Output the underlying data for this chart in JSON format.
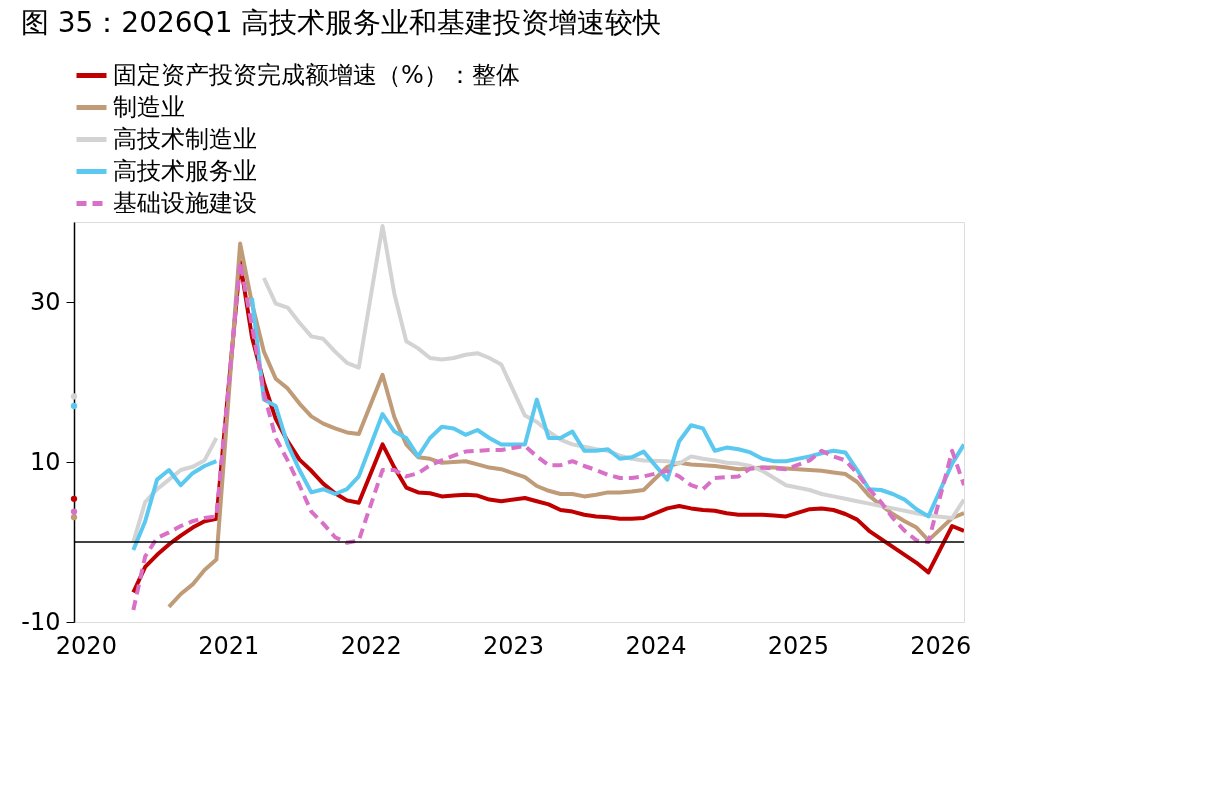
{
  "chart_data": {
    "type": "line",
    "title": "图 35：2026Q1 高技术服务业和基建投资增速较快",
    "x": [
      "2019-12",
      "2020-02",
      "2020-03",
      "2020-04",
      "2020-05",
      "2020-06",
      "2020-07",
      "2020-08",
      "2020-09",
      "2020-10",
      "2020-11",
      "2020-12",
      "2021-02",
      "2021-03",
      "2021-04",
      "2021-05",
      "2021-06",
      "2021-07",
      "2021-08",
      "2021-09",
      "2021-10",
      "2021-11",
      "2021-12",
      "2022-02",
      "2022-03",
      "2022-04",
      "2022-05",
      "2022-06",
      "2022-07",
      "2022-08",
      "2022-09",
      "2022-10",
      "2022-11",
      "2022-12",
      "2023-02",
      "2023-03",
      "2023-04",
      "2023-05",
      "2023-06",
      "2023-07",
      "2023-08",
      "2023-09",
      "2023-10",
      "2023-11",
      "2023-12",
      "2024-02",
      "2024-03",
      "2024-04",
      "2024-05",
      "2024-06",
      "2024-07",
      "2024-08",
      "2024-09",
      "2024-10",
      "2024-11",
      "2024-12",
      "2025-02",
      "2025-03",
      "2025-04",
      "2025-05",
      "2025-06",
      "2025-07",
      "2025-08",
      "2025-09",
      "2025-10",
      "2025-11",
      "2025-12",
      "2026-02",
      "2026-03"
    ],
    "series": [
      {
        "name": "固定资产投资完成额增速（%）：整体",
        "color": "#c00000",
        "values": [
          5.4,
          null,
          null,
          null,
          -6.3,
          -3.1,
          -1.6,
          -0.3,
          0.8,
          1.8,
          2.6,
          2.9,
          35.0,
          25.6,
          19.9,
          15.4,
          12.6,
          10.3,
          8.9,
          7.3,
          6.1,
          5.2,
          4.9,
          12.2,
          9.3,
          6.8,
          6.2,
          6.1,
          5.7,
          5.8,
          5.9,
          5.8,
          5.3,
          5.1,
          5.5,
          5.1,
          4.7,
          4.0,
          3.8,
          3.4,
          3.2,
          3.1,
          2.9,
          2.9,
          3.0,
          4.2,
          4.5,
          4.2,
          4.0,
          3.9,
          3.6,
          3.4,
          3.4,
          3.4,
          3.3,
          3.2,
          4.1,
          4.2,
          4.0,
          3.5,
          2.8,
          1.4,
          0.4,
          -0.6,
          -1.6,
          -2.6,
          -3.8,
          2.0,
          1.4
        ]
      },
      {
        "name": "制造业",
        "color": "#bf9b78",
        "values": [
          3.1,
          null,
          null,
          null,
          null,
          null,
          null,
          -8.1,
          -6.5,
          -5.3,
          -3.5,
          -2.2,
          37.3,
          29.8,
          23.8,
          20.4,
          19.2,
          17.3,
          15.7,
          14.8,
          14.2,
          13.7,
          13.5,
          20.9,
          15.6,
          12.2,
          10.6,
          10.4,
          9.9,
          10.0,
          10.1,
          9.7,
          9.3,
          9.1,
          8.1,
          7.0,
          6.4,
          6.0,
          6.0,
          5.7,
          5.9,
          6.2,
          6.2,
          6.3,
          6.5,
          9.4,
          9.9,
          9.7,
          9.6,
          9.5,
          9.3,
          9.1,
          9.2,
          9.3,
          9.3,
          9.2,
          9.0,
          8.9,
          8.7,
          8.5,
          7.5,
          5.8,
          4.6,
          3.5,
          2.6,
          1.8,
          0.2,
          3.0,
          3.6
        ]
      },
      {
        "name": "高技术制造业",
        "color": "#d3d3d3",
        "values": [
          18.2,
          null,
          null,
          null,
          0.0,
          5.0,
          6.6,
          7.8,
          9.0,
          9.4,
          10.2,
          13.0,
          null,
          null,
          33.0,
          29.8,
          29.3,
          27.4,
          25.7,
          25.4,
          23.8,
          22.4,
          21.8,
          39.5,
          31.0,
          25.1,
          24.2,
          23.0,
          22.8,
          23.0,
          23.4,
          23.6,
          23.0,
          22.2,
          15.8,
          15.0,
          13.8,
          12.8,
          12.2,
          11.9,
          11.6,
          11.4,
          10.8,
          10.4,
          10.2,
          10.1,
          9.8,
          10.7,
          10.4,
          10.2,
          9.9,
          9.8,
          9.5,
          8.9,
          8.0,
          7.1,
          6.5,
          6.0,
          5.7,
          5.4,
          5.1,
          4.8,
          4.5,
          4.2,
          3.9,
          3.6,
          3.3,
          3.0,
          5.3
        ]
      },
      {
        "name": "高技术服务业",
        "color": "#5bc8f0",
        "values": [
          17.0,
          null,
          null,
          null,
          -1.0,
          2.6,
          7.8,
          9.0,
          7.1,
          8.6,
          9.5,
          10.1,
          null,
          30.5,
          17.8,
          17.0,
          12.2,
          9.0,
          6.2,
          6.6,
          6.0,
          6.6,
          8.2,
          16.0,
          13.8,
          13.0,
          10.7,
          13.0,
          14.4,
          14.2,
          13.4,
          14.0,
          13.0,
          12.2,
          12.2,
          17.8,
          13.0,
          13.0,
          13.8,
          11.4,
          11.4,
          11.6,
          10.4,
          10.6,
          11.3,
          7.8,
          12.6,
          14.6,
          14.2,
          11.4,
          11.8,
          11.6,
          11.2,
          10.4,
          10.1,
          10.1,
          10.7,
          11.1,
          11.4,
          11.2,
          9.0,
          6.6,
          6.5,
          6.0,
          5.3,
          4.1,
          3.2,
          9.8,
          12.2
        ]
      },
      {
        "name": "基础设施建设",
        "color": "#d970c8",
        "line_style": "dashed",
        "values": [
          3.8,
          null,
          null,
          null,
          -8.5,
          -1.8,
          0.5,
          1.2,
          2.0,
          2.6,
          3.0,
          3.2,
          35.0,
          27.0,
          18.6,
          13.0,
          10.2,
          7.1,
          3.8,
          2.3,
          0.6,
          -0.1,
          0.2,
          9.0,
          9.0,
          8.2,
          8.6,
          9.6,
          10.2,
          10.8,
          11.3,
          11.4,
          11.5,
          11.5,
          12.0,
          10.7,
          9.6,
          9.6,
          10.1,
          9.5,
          9.0,
          8.4,
          8.0,
          8.0,
          8.2,
          8.9,
          8.2,
          7.1,
          6.6,
          8.0,
          8.1,
          8.2,
          9.2,
          9.3,
          9.2,
          9.1,
          10.2,
          11.4,
          10.7,
          10.2,
          8.6,
          6.6,
          5.0,
          3.0,
          1.4,
          0.2,
          0.0,
          11.4,
          7.1
        ]
      }
    ],
    "xlim": [
      "2019-12",
      "2026-03"
    ],
    "xticks": [
      "2020",
      "2021",
      "2022",
      "2023",
      "2024",
      "2025",
      "2026"
    ],
    "ylim": [
      -10,
      40
    ],
    "yticks": [
      -10,
      10,
      30
    ],
    "ref_lines": [
      {
        "axis": "y",
        "value": 0,
        "color": "#000000"
      }
    ],
    "line_style": "solid",
    "marker": "none",
    "grid": false,
    "legend": "top"
  }
}
